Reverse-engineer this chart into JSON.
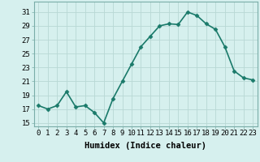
{
  "x": [
    0,
    1,
    2,
    3,
    4,
    5,
    6,
    7,
    8,
    9,
    10,
    11,
    12,
    13,
    14,
    15,
    16,
    17,
    18,
    19,
    20,
    21,
    22,
    23
  ],
  "y": [
    17.5,
    17.0,
    17.5,
    19.5,
    17.3,
    17.5,
    16.5,
    15.0,
    18.5,
    21.0,
    23.5,
    26.0,
    27.5,
    29.0,
    29.3,
    29.2,
    31.0,
    30.5,
    29.3,
    28.5,
    26.0,
    22.5,
    21.5,
    21.2
  ],
  "line_color": "#1a7a6a",
  "marker": "D",
  "marker_size": 2.5,
  "background_color": "#d6f0ee",
  "grid_color": "#b8d8d4",
  "xlabel": "Humidex (Indice chaleur)",
  "ylabel": "",
  "title": "",
  "xlim": [
    -0.5,
    23.5
  ],
  "ylim": [
    14.5,
    32.5
  ],
  "yticks": [
    15,
    17,
    19,
    21,
    23,
    25,
    27,
    29,
    31
  ],
  "xticks": [
    0,
    1,
    2,
    3,
    4,
    5,
    6,
    7,
    8,
    9,
    10,
    11,
    12,
    13,
    14,
    15,
    16,
    17,
    18,
    19,
    20,
    21,
    22,
    23
  ],
  "xtick_labels": [
    "0",
    "1",
    "2",
    "3",
    "4",
    "5",
    "6",
    "7",
    "8",
    "9",
    "10",
    "11",
    "12",
    "13",
    "14",
    "15",
    "16",
    "17",
    "18",
    "19",
    "20",
    "21",
    "22",
    "23"
  ],
  "xlabel_fontsize": 7.5,
  "tick_fontsize": 6.5,
  "line_width": 1.2
}
